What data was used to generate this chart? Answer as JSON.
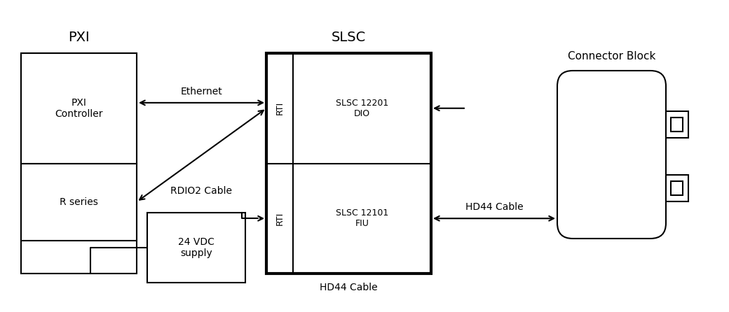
{
  "bg_color": "#ffffff",
  "text_color": "#000000",
  "line_color": "#000000",
  "title_pxi": "PXI",
  "title_slsc": "SLSC",
  "title_cb": "Connector Block",
  "label_pxi_ctrl": "PXI\nController",
  "label_r_series": "R series",
  "label_slsc12201": "SLSC 12201\nDIO",
  "label_slsc12101": "SLSC 12101\nFIU",
  "label_rti_top": "RTI",
  "label_rti_bot": "RTI",
  "label_24vdc": "24 VDC\nsupply",
  "label_ethernet": "Ethernet",
  "label_rdio2": "RDIO2 Cable",
  "label_hd44_arrow": "HD44 Cable",
  "label_hd44_bottom": "HD44 Cable",
  "figsize": [
    10.4,
    4.46
  ],
  "dpi": 100
}
